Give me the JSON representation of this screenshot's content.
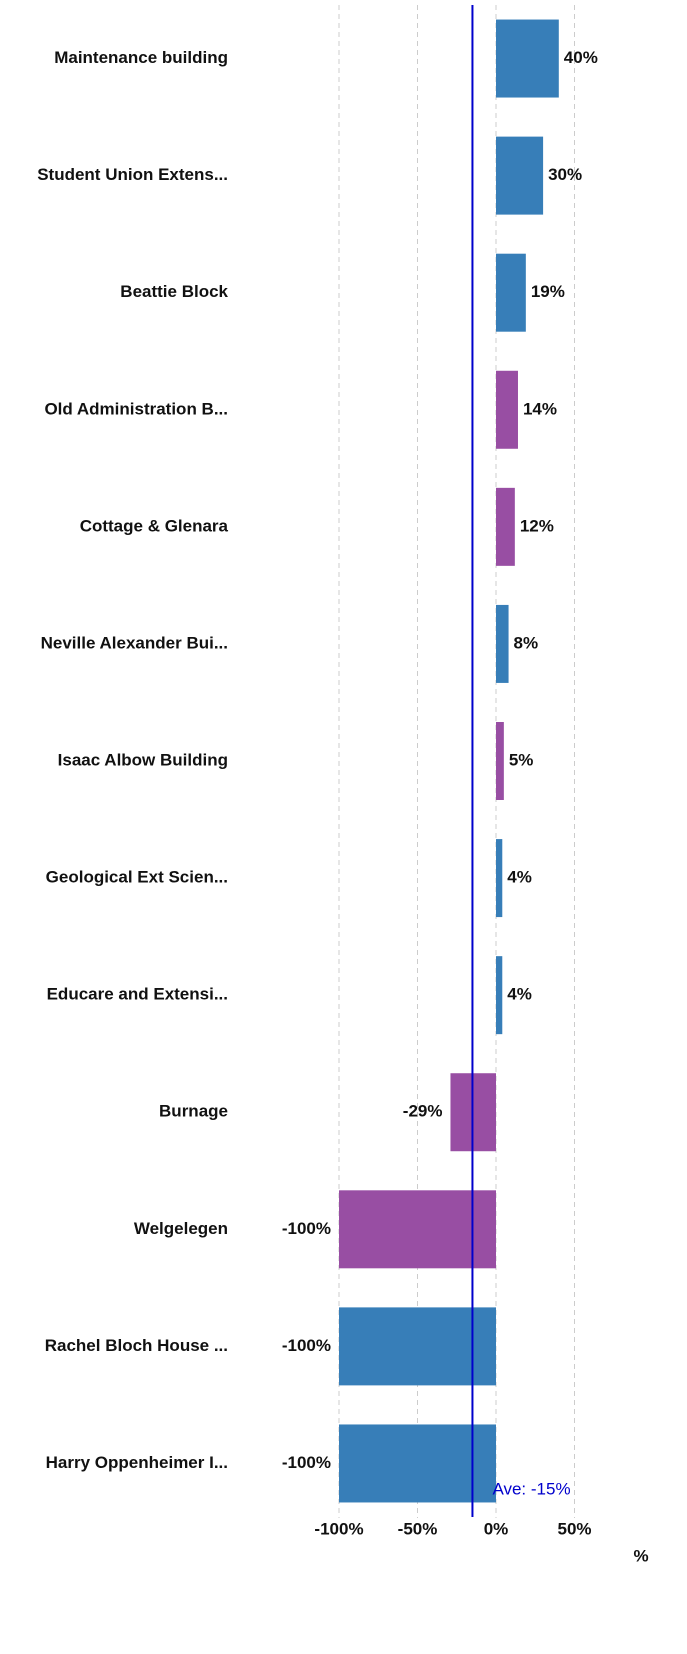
{
  "chart_data": {
    "type": "barh",
    "categories": [
      "Maintenance building",
      "Student Union Extens...",
      "Beattie Block",
      "Old Administration B...",
      "Cottage & Glenara",
      "Neville Alexander Bui...",
      "Isaac Albow Building",
      "Geological Ext Scien...",
      "Educare and Extensi...",
      "Burnage",
      "Welgelegen",
      "Rachel Bloch House ...",
      "Harry Oppenheimer I..."
    ],
    "values": [
      40,
      30,
      19,
      14,
      12,
      8,
      5,
      4,
      4,
      -29,
      -100,
      -100,
      -100
    ],
    "value_labels": [
      "40%",
      "30%",
      "19%",
      "14%",
      "12%",
      "8%",
      "5%",
      "4%",
      "4%",
      "-29%",
      "-100%",
      "-100%",
      "-100%"
    ],
    "colors": [
      "#377eb8",
      "#377eb8",
      "#377eb8",
      "#984ea3",
      "#984ea3",
      "#377eb8",
      "#984ea3",
      "#377eb8",
      "#377eb8",
      "#984ea3",
      "#984ea3",
      "#377eb8",
      "#377eb8"
    ],
    "xlim": [
      -100,
      65
    ],
    "xticks": [
      {
        "value": -100,
        "label": "-100%"
      },
      {
        "value": -50,
        "label": "-50%"
      },
      {
        "value": 0,
        "label": "0%"
      },
      {
        "value": 50,
        "label": "50%"
      }
    ],
    "xlabel": "%",
    "grid": true,
    "average": {
      "value": -15,
      "label": "Ave: -15%",
      "color": "#0000cc"
    }
  }
}
